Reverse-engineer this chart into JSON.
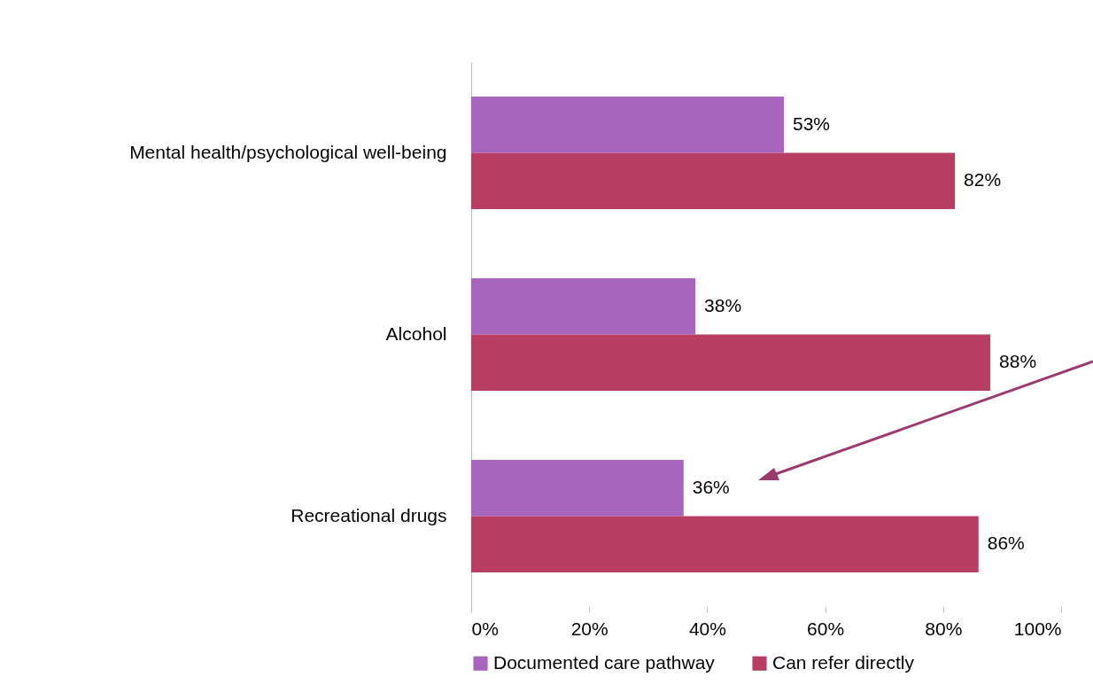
{
  "chart_data": {
    "type": "bar",
    "orientation": "horizontal",
    "categories": [
      "Mental health/psychological well-being",
      "Alcohol",
      "Recreational drugs"
    ],
    "series": [
      {
        "name": "Documented care pathway",
        "color": "#a865bd",
        "values": [
          53,
          38,
          36
        ],
        "value_labels": [
          "53%",
          "38%",
          "36%"
        ]
      },
      {
        "name": "Can refer directly",
        "color": "#b83d63",
        "values": [
          82,
          88,
          86
        ],
        "value_labels": [
          "82%",
          "88%",
          "86%"
        ]
      }
    ],
    "xlim": [
      0,
      100
    ],
    "xticks": [
      {
        "value": 0,
        "label": "0%"
      },
      {
        "value": 20,
        "label": "20%"
      },
      {
        "value": 40,
        "label": "40%"
      },
      {
        "value": 60,
        "label": "60%"
      },
      {
        "value": 80,
        "label": "80%"
      },
      {
        "value": 100,
        "label": "100%"
      }
    ],
    "legend": "bottom"
  }
}
